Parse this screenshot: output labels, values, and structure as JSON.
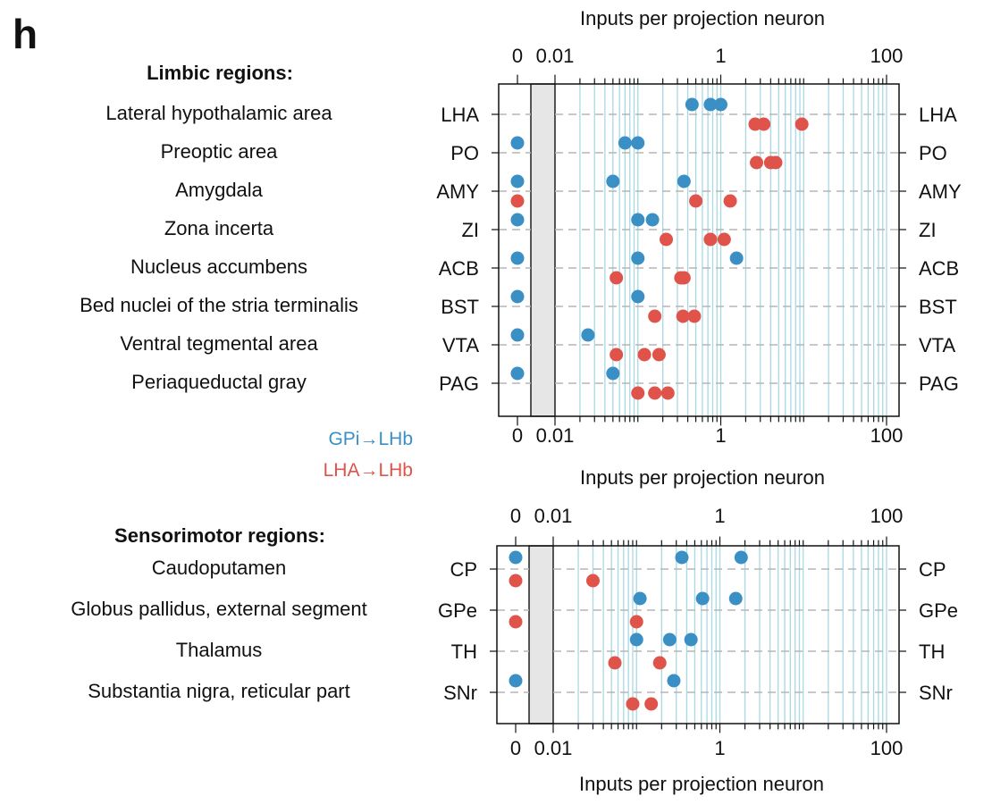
{
  "panel_label": "h",
  "legend": {
    "gpi_label": "GPi→LHb",
    "lha_label": "LHA→LHb",
    "gpi_color": "#3a8fc4",
    "lha_color": "#e0534a"
  },
  "chart_data": [
    {
      "type": "scatter",
      "title": "Limbic regions:",
      "xlabel": "Inputs per projection neuron",
      "xscale": "log",
      "xlim": [
        0.002,
        120
      ],
      "zero_column": true,
      "xticks": [
        "0",
        "0.01",
        "1",
        "100"
      ],
      "grid_color": "#a9d8e3",
      "rows": [
        {
          "abbr": "LHA",
          "name": "Lateral hypothalamic area",
          "gpi": [
            0.45,
            0.75,
            1.0
          ],
          "lha": [
            2.6,
            3.3,
            9.5
          ]
        },
        {
          "abbr": "PO",
          "name": "Preoptic area",
          "gpi": [
            0,
            0.07,
            0.1
          ],
          "lha": [
            2.7,
            4.0,
            4.6
          ]
        },
        {
          "abbr": "AMY",
          "name": "Amygdala",
          "gpi": [
            0,
            0.05,
            0.36
          ],
          "lha": [
            0,
            0.5,
            1.3
          ]
        },
        {
          "abbr": "ZI",
          "name": "Zona incerta",
          "gpi": [
            0,
            0.1,
            0.15
          ],
          "lha": [
            0.22,
            0.75,
            1.1
          ]
        },
        {
          "abbr": "ACB",
          "name": "Nucleus accumbens",
          "gpi": [
            0,
            0.1,
            1.55
          ],
          "lha": [
            0.055,
            0.33,
            0.36
          ]
        },
        {
          "abbr": "BST",
          "name": "Bed nuclei of the stria terminalis",
          "gpi": [
            0,
            0.1
          ],
          "lha": [
            0.16,
            0.35,
            0.48
          ]
        },
        {
          "abbr": "VTA",
          "name": "Ventral tegmental area",
          "gpi": [
            0,
            0.025
          ],
          "lha": [
            0.055,
            0.12,
            0.18
          ]
        },
        {
          "abbr": "PAG",
          "name": "Periaqueductal gray",
          "gpi": [
            0,
            0.05
          ],
          "lha": [
            0.1,
            0.16,
            0.23
          ]
        }
      ]
    },
    {
      "type": "scatter",
      "title": "Sensorimotor regions:",
      "xlabel": "Inputs per projection neuron",
      "xscale": "log",
      "xlim": [
        0.002,
        120
      ],
      "zero_column": true,
      "xticks": [
        "0",
        "0.01",
        "1",
        "100"
      ],
      "grid_color": "#a9d8e3",
      "rows": [
        {
          "abbr": "CP",
          "name": "Caudoputamen",
          "gpi": [
            0,
            0.35,
            1.8
          ],
          "lha": [
            0,
            0.03
          ]
        },
        {
          "abbr": "GPe",
          "name": "Globus pallidus, external segment",
          "gpi": [
            0.11,
            0.62,
            1.55
          ],
          "lha": [
            0,
            0.1
          ]
        },
        {
          "abbr": "TH",
          "name": "Thalamus",
          "gpi": [
            0.1,
            0.25,
            0.45
          ],
          "lha": [
            0.055,
            0.19
          ]
        },
        {
          "abbr": "SNr",
          "name": "Substantia nigra, reticular part",
          "gpi": [
            0,
            0.28
          ],
          "lha": [
            0.09,
            0.15
          ]
        }
      ]
    }
  ]
}
